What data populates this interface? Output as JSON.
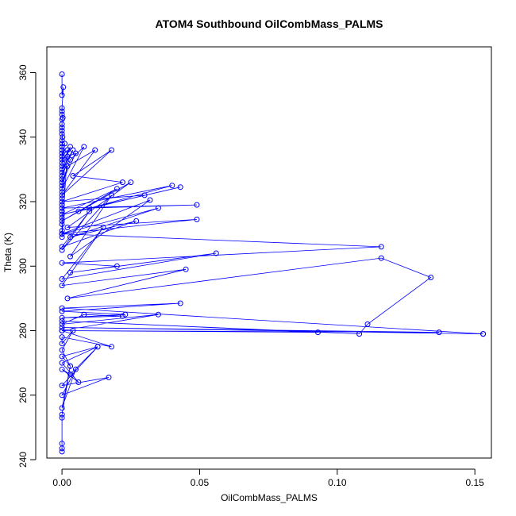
{
  "chart_data": {
    "type": "line",
    "title": "ATOM4 Southbound OilCombMass_PALMS",
    "xlabel": "OilCombMass_PALMS",
    "ylabel": "Theta (K)",
    "xlim": [
      -0.0055,
      0.156
    ],
    "ylim": [
      240.5,
      368
    ],
    "xticks": [
      0.0,
      0.05,
      0.1,
      0.15
    ],
    "xtick_labels": [
      "0.00",
      "0.05",
      "0.10",
      "0.15"
    ],
    "yticks": [
      240,
      260,
      280,
      300,
      320,
      340,
      360
    ],
    "ytick_labels": [
      "240",
      "260",
      "280",
      "300",
      "320",
      "340",
      "360"
    ],
    "grid": false,
    "legend": "none",
    "marker": "open-circle",
    "color": "#0000ff",
    "series": [
      {
        "x": [
          0.0,
          0.0,
          0.0005,
          0.0,
          0.0,
          0.0,
          0.0003,
          0.0,
          0.0,
          0.0,
          0.0,
          0.0,
          0.0002,
          0.0,
          0.0,
          0.0,
          0.0,
          0.0,
          0.0,
          0.0,
          0.0,
          0.0,
          0.0,
          0.0,
          0.0,
          0.0,
          0.0,
          0.0,
          0.0,
          0.0,
          0.0,
          0.002,
          0.0,
          0.001,
          0.0,
          0.003,
          0.0,
          0.004,
          0.0,
          0.002,
          0.005,
          0.0,
          0.003,
          0.008,
          0.0,
          0.002,
          0.012,
          0.0,
          0.018,
          0.004,
          0.022,
          0.0,
          0.03,
          0.006,
          0.04,
          0.0,
          0.049,
          0.01,
          0.043,
          0.0,
          0.02,
          0.0,
          0.025,
          0.002,
          0.049,
          0.0,
          0.035,
          0.003,
          0.027,
          0.0,
          0.01,
          0.0,
          0.018,
          0.003,
          0.032,
          0.0,
          0.116,
          0.0,
          0.02,
          0.003,
          0.056,
          0.0,
          0.015,
          0.0,
          0.045,
          0.002,
          0.116,
          0.134,
          0.111,
          0.108,
          0.0,
          0.093,
          0.0,
          0.137,
          0.0,
          0.153,
          0.153,
          0.0,
          0.043,
          0.0,
          0.023,
          0.0,
          0.022,
          0.008,
          0.0,
          0.035,
          0.0,
          0.018,
          0.0,
          0.0,
          0.004,
          0.0,
          0.003,
          0.0,
          0.013,
          0.0,
          0.006,
          0.0,
          0.003,
          0.013,
          0.0,
          0.017,
          0.0,
          0.005,
          0.0,
          0.003,
          0.0,
          0.0,
          0.0,
          0.0,
          0.0
        ],
        "y": [
          359.5,
          353,
          355.5,
          349,
          348,
          347,
          346,
          345.5,
          344,
          343,
          342,
          341,
          340,
          339,
          338,
          337,
          336,
          335,
          333,
          331,
          329,
          327,
          325,
          323,
          321,
          319,
          317,
          315,
          313,
          311,
          309,
          336,
          334,
          338,
          332,
          337,
          330,
          336,
          328,
          334,
          335,
          326,
          333,
          337,
          324,
          331,
          336,
          322,
          336,
          328,
          326,
          320,
          322,
          317,
          325,
          318,
          319,
          318,
          324.5,
          316,
          324,
          314,
          326,
          312,
          314.5,
          310,
          318,
          309,
          314,
          306,
          317,
          305,
          322,
          303,
          320.5,
          310,
          306,
          301,
          300,
          298,
          304,
          296,
          312,
          294,
          299,
          290,
          302.5,
          296.5,
          282,
          279,
          283,
          279.5,
          280,
          279.5,
          281,
          279,
          279,
          287,
          288.5,
          286,
          285,
          284,
          284.5,
          285,
          282,
          285,
          280,
          275,
          278,
          276,
          280,
          274,
          269,
          272,
          275,
          270,
          264,
          268,
          266.5,
          275,
          263,
          265.5,
          260,
          268,
          256,
          269,
          254,
          253,
          245,
          243.5,
          242.5
        ]
      }
    ]
  }
}
